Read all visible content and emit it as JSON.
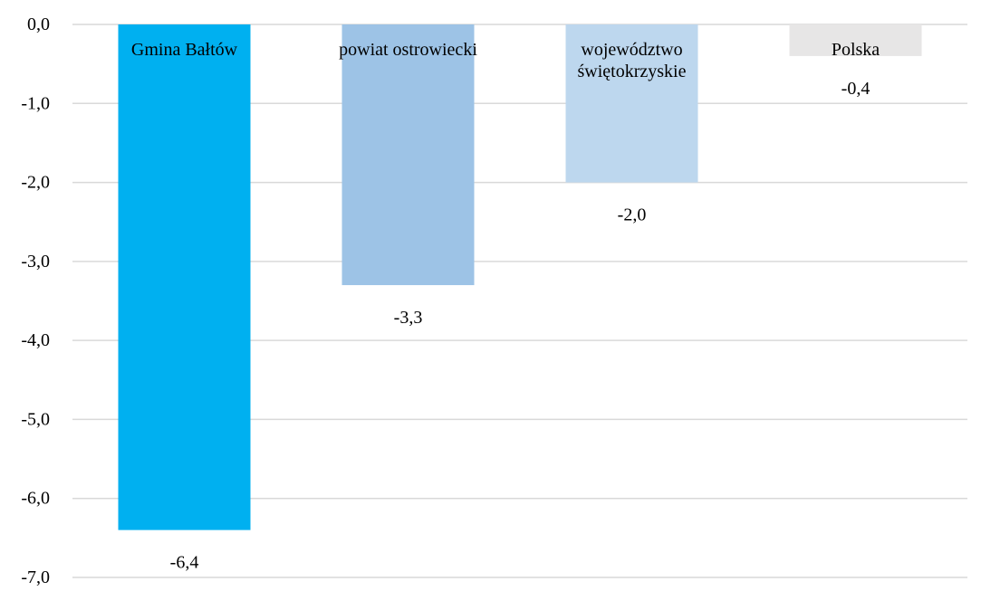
{
  "chart_data": {
    "type": "bar",
    "categories": [
      [
        "Gmina Bałtów"
      ],
      [
        "powiat ostrowiecki"
      ],
      [
        "województwo",
        "świętokrzyskie"
      ],
      [
        "Polska"
      ]
    ],
    "values": [
      -6.4,
      -3.3,
      -2.0,
      -0.4
    ],
    "value_labels": [
      "-6,4",
      "-3,3",
      "-2,0",
      "-0,4"
    ],
    "colors": [
      "#00b0f0",
      "#9dc3e6",
      "#bdd7ee",
      "#e7e6e6"
    ],
    "ylim": [
      -7,
      0
    ],
    "yticks": [
      {
        "value": 0,
        "label": "0,0"
      },
      {
        "value": -1,
        "label": "-1,0"
      },
      {
        "value": -2,
        "label": "-2,0"
      },
      {
        "value": -3,
        "label": "-3,0"
      },
      {
        "value": -4,
        "label": "-4,0"
      },
      {
        "value": -5,
        "label": "-5,0"
      },
      {
        "value": -6,
        "label": "-6,0"
      },
      {
        "value": -7,
        "label": "-7,0"
      }
    ],
    "grid": true,
    "legend": "none",
    "title": "",
    "xlabel": "",
    "ylabel": ""
  }
}
